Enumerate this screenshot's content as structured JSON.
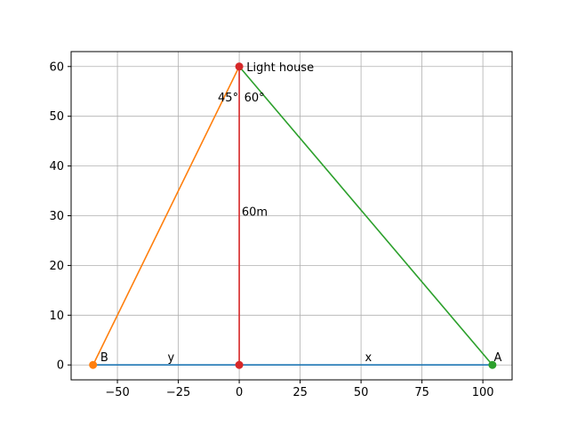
{
  "chart_data": {
    "type": "line",
    "title": "",
    "xlabel": "",
    "ylabel": "",
    "xlim": [
      -69,
      112
    ],
    "ylim": [
      -3,
      63
    ],
    "grid": true,
    "xticks": [
      -50,
      -25,
      0,
      25,
      50,
      75,
      100
    ],
    "xtick_labels": [
      "−50",
      "−25",
      "0",
      "25",
      "50",
      "75",
      "100"
    ],
    "yticks": [
      0,
      10,
      20,
      30,
      40,
      50,
      60
    ],
    "ytick_labels": [
      "0",
      "10",
      "20",
      "30",
      "40",
      "50",
      "60"
    ],
    "series": [
      {
        "color": "#1f77b4",
        "x": [
          -60,
          103.92
        ],
        "y": [
          0,
          0
        ],
        "markers": false
      },
      {
        "color": "#ff7f0e",
        "x": [
          -60,
          0
        ],
        "y": [
          0,
          60
        ],
        "markers": false
      },
      {
        "color": "#2ca02c",
        "x": [
          0,
          103.92
        ],
        "y": [
          60,
          0
        ],
        "markers": false
      },
      {
        "color": "#d62728",
        "x": [
          0,
          0
        ],
        "y": [
          0,
          60
        ],
        "markers": false
      }
    ],
    "points": [
      {
        "color": "#ff7f0e",
        "x": -60,
        "y": 0
      },
      {
        "color": "#2ca02c",
        "x": 103.92,
        "y": 0
      },
      {
        "color": "#d62728",
        "x": 0,
        "y": 0
      },
      {
        "color": "#d62728",
        "x": 0,
        "y": 60
      }
    ],
    "annotations": [
      {
        "text": "Light house",
        "x": 3,
        "y": 60,
        "anchor": "start",
        "dy": 5
      },
      {
        "text": "45°",
        "x": 0,
        "y": 53,
        "anchor": "end",
        "dx": -1
      },
      {
        "text": "60°",
        "x": 2,
        "y": 53,
        "anchor": "start"
      },
      {
        "text": "60m",
        "x": 1,
        "y": 30,
        "anchor": "start"
      },
      {
        "text": "B",
        "x": -57,
        "y": 0,
        "anchor": "start",
        "dy": -4
      },
      {
        "text": "A",
        "x": 104.5,
        "y": 0,
        "anchor": "start",
        "dy": -4
      },
      {
        "text": "y",
        "x": -28,
        "y": 0,
        "anchor": "middle",
        "dy": -4
      },
      {
        "text": "x",
        "x": 53,
        "y": 0,
        "anchor": "middle",
        "dy": -4
      }
    ]
  }
}
